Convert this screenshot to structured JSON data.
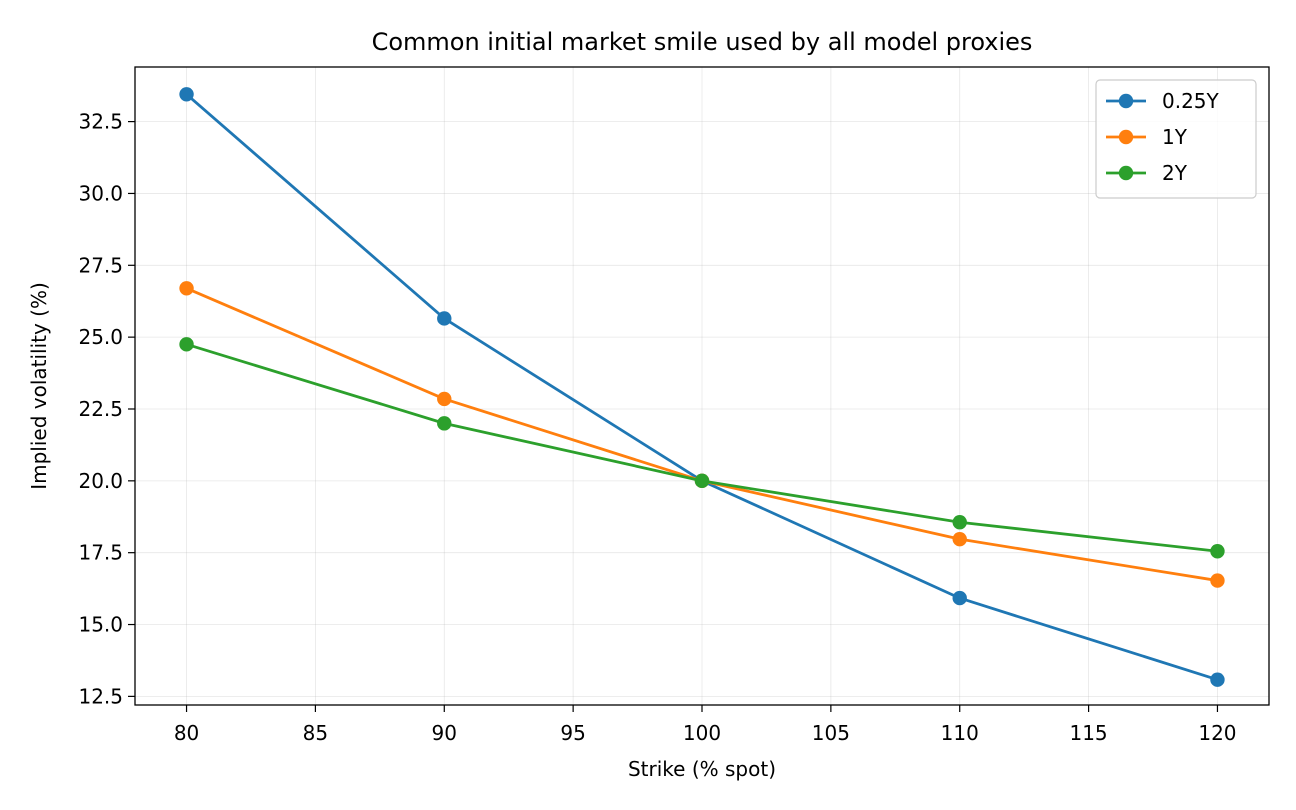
{
  "chart_data": {
    "type": "line",
    "title": "Common initial market smile used by all model proxies",
    "xlabel": "Strike (% spot)",
    "ylabel": "Implied volatility (%)",
    "x": [
      80,
      90,
      100,
      110,
      120
    ],
    "xlim": [
      78,
      122
    ],
    "ylim": [
      12.2,
      34.4
    ],
    "xticks": [
      80,
      85,
      90,
      95,
      100,
      105,
      110,
      115,
      120
    ],
    "yticks": [
      12.5,
      15.0,
      17.5,
      20.0,
      22.5,
      25.0,
      27.5,
      30.0,
      32.5
    ],
    "grid": true,
    "legend_position": "top-right",
    "series": [
      {
        "name": "0.25Y",
        "color": "#1f77b4",
        "values": [
          33.45,
          25.65,
          20.0,
          15.92,
          13.08
        ]
      },
      {
        "name": "1Y",
        "color": "#ff7f0e",
        "values": [
          26.7,
          22.85,
          20.0,
          17.97,
          16.53
        ]
      },
      {
        "name": "2Y",
        "color": "#2ca02c",
        "values": [
          24.75,
          22.0,
          20.0,
          18.56,
          17.55
        ]
      }
    ]
  }
}
